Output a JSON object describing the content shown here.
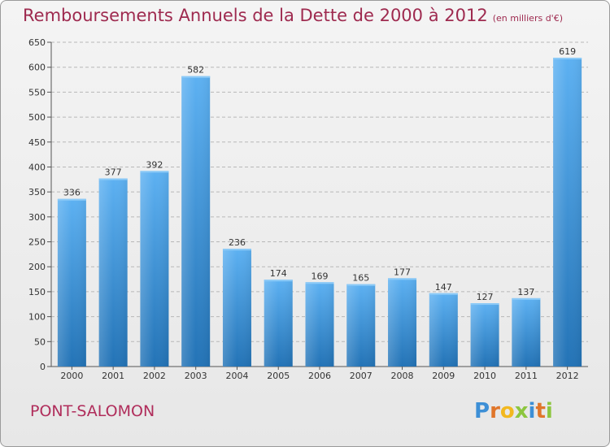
{
  "title": "Remboursements Annuels de la Dette de 2000 à 2012",
  "unit_note": "(en milliers d'€)",
  "city": "PONT-SALOMON",
  "logo": {
    "letters": [
      "P",
      "r",
      "o",
      "x",
      "i",
      "t",
      "i"
    ],
    "colors": [
      "#3d8fd6",
      "#e0762b",
      "#f2b81f",
      "#8cc63f",
      "#3d8fd6",
      "#e0762b",
      "#8cc63f"
    ]
  },
  "colors": {
    "bar_light": "#5aaef0",
    "bar_dark": "#2779bd",
    "title": "#9e2a4f",
    "grid": "#b8b8b8"
  },
  "chart_data": {
    "type": "bar",
    "title": "Remboursements Annuels de la Dette de 2000 à 2012",
    "categories": [
      "2000",
      "2001",
      "2002",
      "2003",
      "2004",
      "2005",
      "2006",
      "2007",
      "2008",
      "2009",
      "2010",
      "2011",
      "2012"
    ],
    "values": [
      336,
      377,
      392,
      582,
      236,
      174,
      169,
      165,
      177,
      147,
      127,
      137,
      619
    ],
    "ylim": [
      0,
      650
    ],
    "yticks": [
      0,
      50,
      100,
      150,
      200,
      250,
      300,
      350,
      400,
      450,
      500,
      550,
      600,
      650
    ],
    "grid": true
  }
}
